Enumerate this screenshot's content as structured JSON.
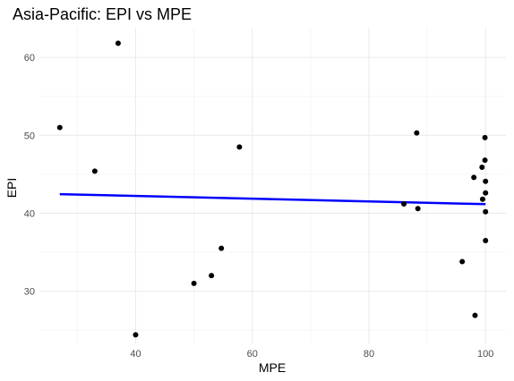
{
  "chart_data": {
    "type": "scatter",
    "title": "Asia-Pacific: EPI vs MPE",
    "xlabel": "MPE",
    "ylabel": "EPI",
    "xlim": [
      23.5,
      103.5
    ],
    "ylim": [
      23.3,
      63.8
    ],
    "x_ticks": [
      40,
      60,
      80,
      100
    ],
    "y_ticks": [
      30,
      40,
      50,
      60
    ],
    "x_minor": [
      30,
      50,
      70,
      90
    ],
    "y_minor": [
      25,
      35,
      45,
      55
    ],
    "grid": true,
    "points": [
      {
        "x": 27.0,
        "y": 51.0
      },
      {
        "x": 33.0,
        "y": 45.4
      },
      {
        "x": 37.0,
        "y": 61.8
      },
      {
        "x": 40.0,
        "y": 24.4
      },
      {
        "x": 50.0,
        "y": 31.0
      },
      {
        "x": 53.0,
        "y": 32.0
      },
      {
        "x": 54.7,
        "y": 35.5
      },
      {
        "x": 57.8,
        "y": 48.5
      },
      {
        "x": 86.0,
        "y": 41.2
      },
      {
        "x": 88.2,
        "y": 50.3
      },
      {
        "x": 88.4,
        "y": 40.6
      },
      {
        "x": 96.0,
        "y": 33.8
      },
      {
        "x": 98.0,
        "y": 44.6
      },
      {
        "x": 98.2,
        "y": 26.9
      },
      {
        "x": 99.4,
        "y": 45.9
      },
      {
        "x": 99.5,
        "y": 41.8
      },
      {
        "x": 99.9,
        "y": 49.7
      },
      {
        "x": 99.9,
        "y": 46.8
      },
      {
        "x": 100.0,
        "y": 44.1
      },
      {
        "x": 100.0,
        "y": 42.6
      },
      {
        "x": 100.0,
        "y": 40.2
      },
      {
        "x": 100.0,
        "y": 36.5
      }
    ],
    "fit_line": {
      "x": [
        27.0,
        100.0
      ],
      "y": [
        42.45,
        41.17
      ],
      "color": "#0000ff"
    },
    "point_color": "#000000",
    "grid_major_color": "#ebebeb",
    "grid_minor_color": "#f5f5f5"
  }
}
